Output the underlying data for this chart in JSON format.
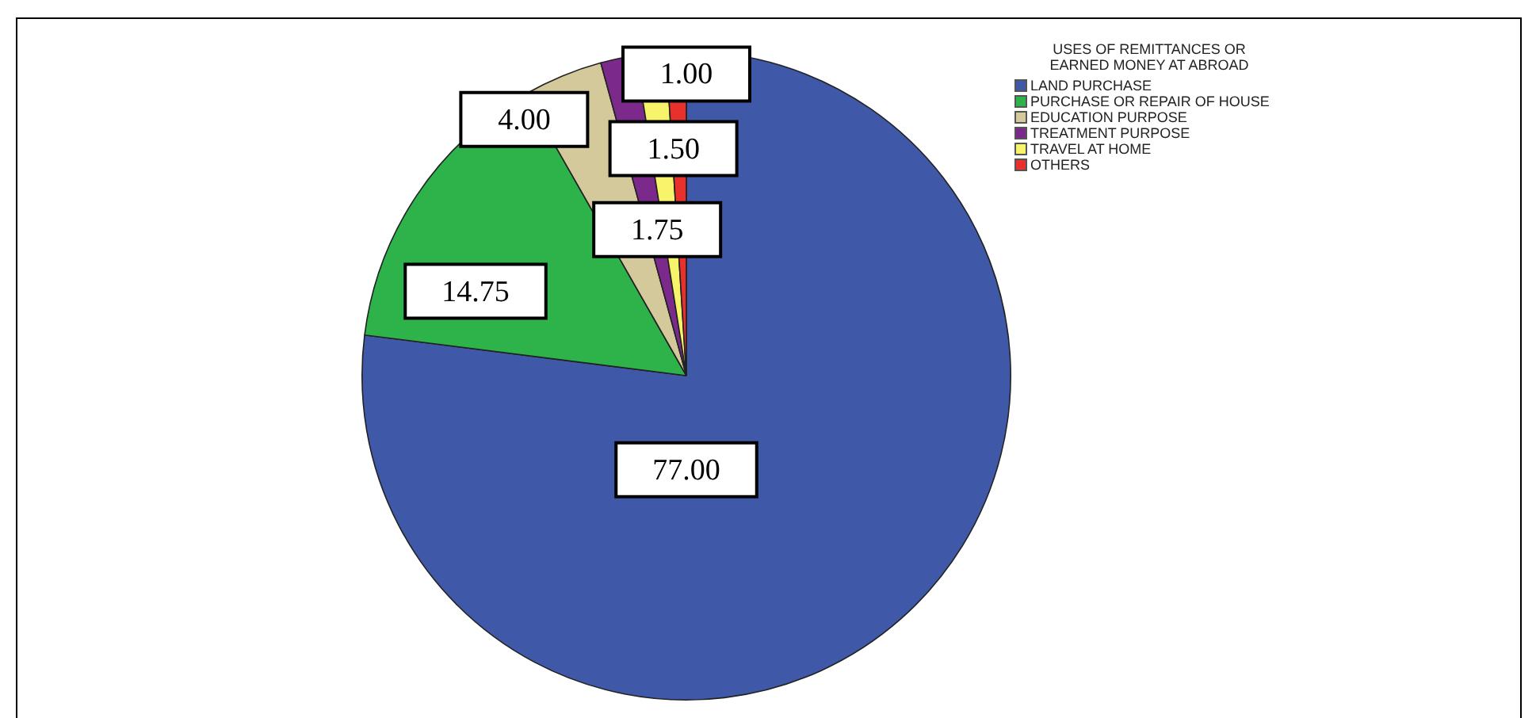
{
  "chart_data": {
    "type": "pie",
    "legend_title": "USES OF REMITTANCES OR EARNED MONEY AT ABROAD",
    "categories": [
      "LAND PURCHASE",
      "PURCHASE OR REPAIR OF HOUSE",
      "EDUCATION PURPOSE",
      "TREATMENT PURPOSE",
      "TRAVEL AT HOME",
      "OTHERS"
    ],
    "values": [
      77.0,
      14.75,
      4.0,
      1.75,
      1.5,
      1.0
    ],
    "colors": [
      "#3f58a8",
      "#2db34a",
      "#d4c99a",
      "#7b2a8c",
      "#f7f36a",
      "#e8302c"
    ],
    "value_labels": [
      "77.00",
      "14.75",
      "4.00",
      "1.75",
      "1.50",
      "1.00"
    ],
    "legend": "top right"
  }
}
